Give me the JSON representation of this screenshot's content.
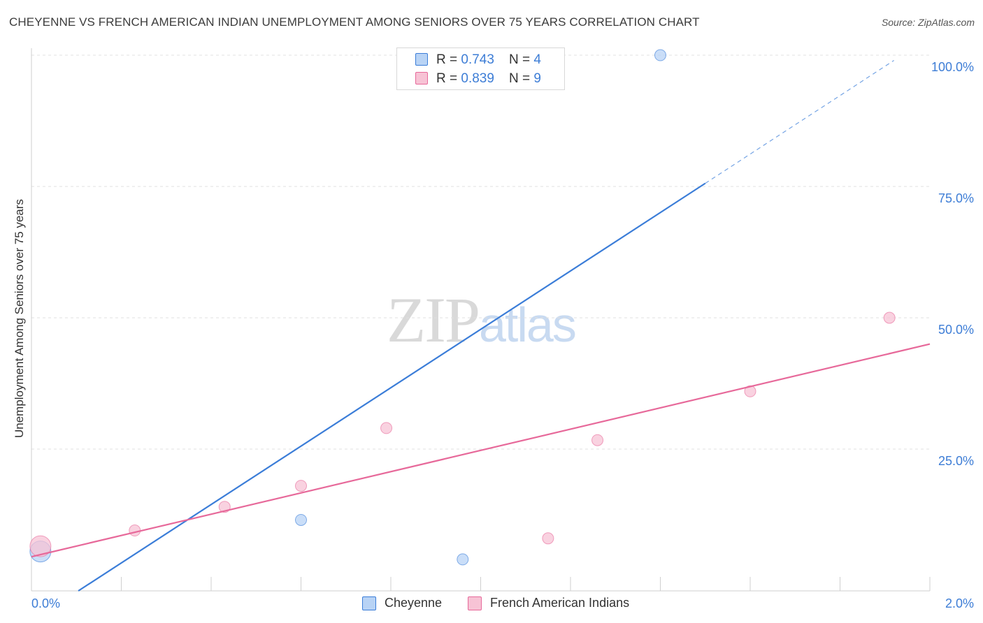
{
  "title": "CHEYENNE VS FRENCH AMERICAN INDIAN UNEMPLOYMENT AMONG SENIORS OVER 75 YEARS CORRELATION CHART",
  "source": "Source: ZipAtlas.com",
  "watermark": {
    "zip": "ZIP",
    "atlas": "atlas"
  },
  "legend_top": [
    {
      "r_label": "R = ",
      "r_value": "0.743",
      "n_label": "N = ",
      "n_value": "4"
    },
    {
      "r_label": "R = ",
      "r_value": "0.839",
      "n_label": "N = ",
      "n_value": "9"
    }
  ],
  "colors": {
    "cheyenne": "#3b7dd8",
    "cheyenne_fill": "#b8d3f5",
    "french": "#e7699a",
    "french_fill": "#f7c3d5",
    "tick_label": "#3d7dd6",
    "grid": "#e0e0e0"
  },
  "chart_data": {
    "type": "scatter",
    "title": "CHEYENNE VS FRENCH AMERICAN INDIAN UNEMPLOYMENT AMONG SENIORS OVER 75 YEARS CORRELATION CHART",
    "xlabel": "",
    "ylabel": "Unemployment Among Seniors over 75 years",
    "xlim": [
      0,
      2.0
    ],
    "ylim": [
      -2,
      102
    ],
    "x_tick_labels": [
      "0.0%",
      "2.0%"
    ],
    "y_ticks": [
      25,
      50,
      75,
      100
    ],
    "y_tick_labels": [
      "25.0%",
      "50.0%",
      "75.0%",
      "100.0%"
    ],
    "legend_position": "top-center",
    "series": [
      {
        "name": "Cheyenne",
        "key": "cheyenne",
        "points": [
          {
            "x": 0.02,
            "y": 5.5,
            "big": true
          },
          {
            "x": 0.6,
            "y": 11.5
          },
          {
            "x": 0.96,
            "y": 4.0
          },
          {
            "x": 1.4,
            "y": 100.0
          }
        ],
        "trend": {
          "x0": 0.0,
          "y0": -7.8,
          "x1": 1.5,
          "y1": 75.6,
          "dash_x1": 1.92,
          "dash_y1": 99.0
        }
      },
      {
        "name": "French American Indians",
        "key": "french",
        "points": [
          {
            "x": 0.02,
            "y": 6.5,
            "big": true
          },
          {
            "x": 0.23,
            "y": 9.5
          },
          {
            "x": 0.43,
            "y": 14.0
          },
          {
            "x": 0.6,
            "y": 18.0
          },
          {
            "x": 0.79,
            "y": 29.0
          },
          {
            "x": 1.15,
            "y": 8.0
          },
          {
            "x": 1.26,
            "y": 26.7
          },
          {
            "x": 1.6,
            "y": 36.0
          },
          {
            "x": 1.91,
            "y": 50.0
          }
        ],
        "trend": {
          "x0": 0.0,
          "y0": 4.5,
          "x1": 2.0,
          "y1": 45.0
        }
      }
    ]
  }
}
